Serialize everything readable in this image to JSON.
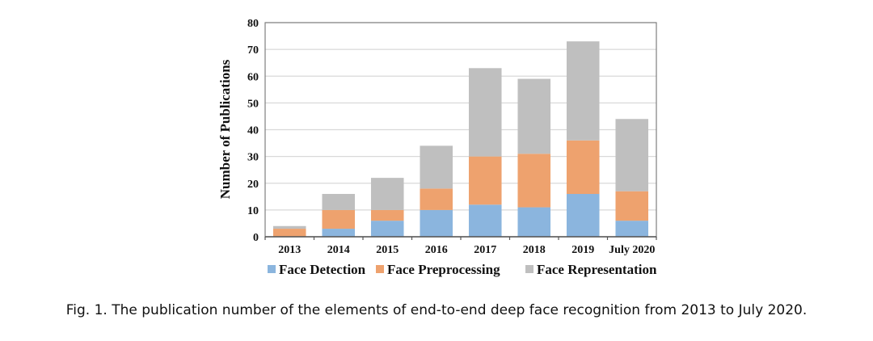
{
  "caption": "Fig. 1.  The publication number of the elements of end-to-end deep face recognition from 2013 to July 2020.",
  "chart_data": {
    "type": "bar",
    "stacked": true,
    "title": "",
    "xlabel": "",
    "ylabel": "Number of Publications",
    "ylim": [
      0,
      80
    ],
    "yticks": [
      0,
      10,
      20,
      30,
      40,
      50,
      60,
      70,
      80
    ],
    "grid": true,
    "legend": "bottom",
    "categories": [
      "2013",
      "2014",
      "2015",
      "2016",
      "2017",
      "2018",
      "2019",
      "July 2020"
    ],
    "series": [
      {
        "name": "Face Detection",
        "color": "#8bb5de",
        "values": [
          0,
          3,
          6,
          10,
          12,
          11,
          16,
          6
        ]
      },
      {
        "name": "Face Preprocessing",
        "color": "#eea26e",
        "values": [
          3,
          7,
          4,
          8,
          18,
          20,
          20,
          11
        ]
      },
      {
        "name": "Face Representation",
        "color": "#bfbfbf",
        "values": [
          1,
          6,
          12,
          16,
          33,
          28,
          37,
          27
        ]
      }
    ]
  }
}
